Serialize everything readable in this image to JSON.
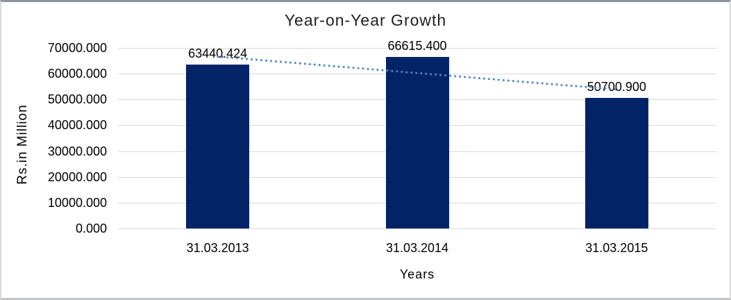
{
  "chart_data": {
    "type": "bar",
    "title": "Year-on-Year Growth",
    "xlabel": "Years",
    "ylabel": "Rs.in Million",
    "categories": [
      "31.03.2013",
      "31.03.2014",
      "31.03.2015"
    ],
    "values": [
      63440.424,
      66615.4,
      50700.9
    ],
    "value_labels": [
      "63440.424",
      "66615.400",
      "50700.900"
    ],
    "ylim": [
      0,
      70000
    ],
    "ytick_step": 10000,
    "ytick_labels": [
      "0.000",
      "10000.000",
      "20000.000",
      "30000.000",
      "40000.000",
      "50000.000",
      "60000.000",
      "70000.000"
    ],
    "grid": true,
    "legend": false,
    "trendline": {
      "type": "linear",
      "style": "dotted",
      "color": "#4e87cb"
    },
    "colors": {
      "bar": "#022366",
      "gridline": "#d9d9d9",
      "text": "#000000",
      "title": "#1f1f1f",
      "frame_border": "#d9d9d9"
    }
  }
}
